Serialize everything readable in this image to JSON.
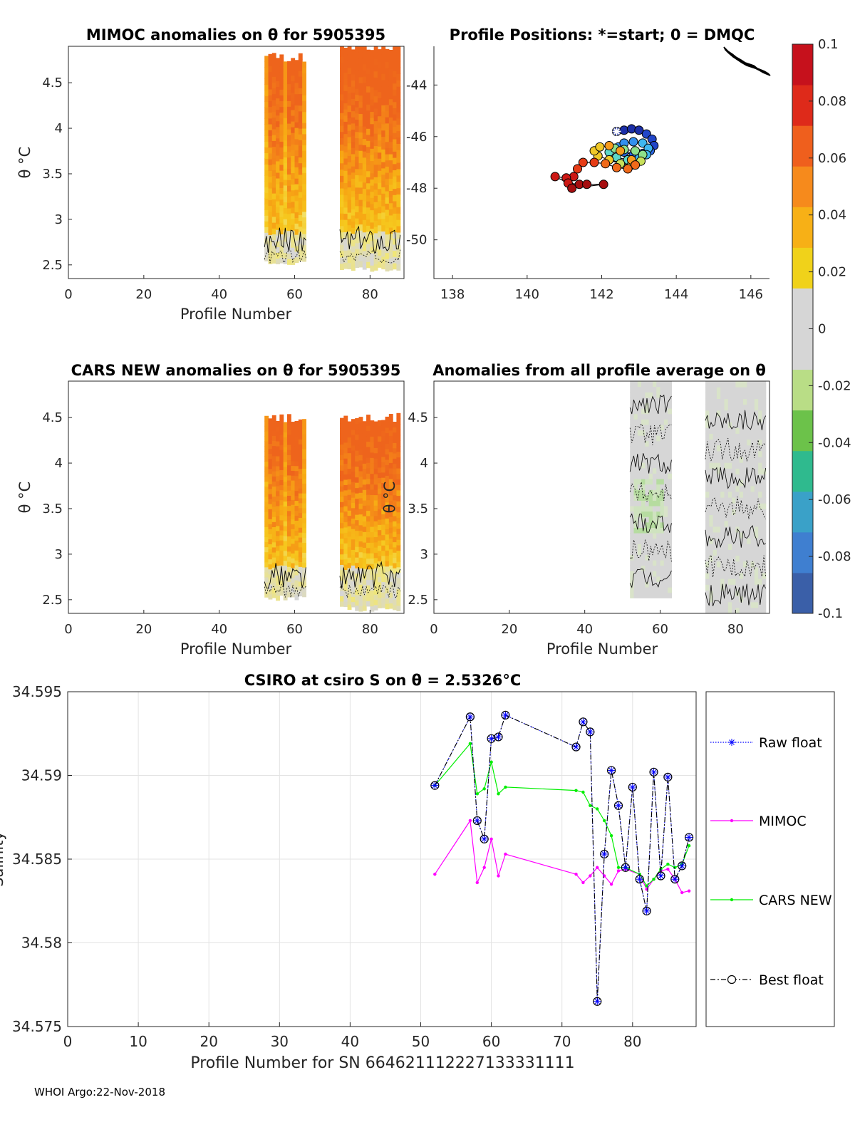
{
  "footer": "WHOI Argo:22-Nov-2018",
  "panels": {
    "mimoc": {
      "title": "MIMOC anomalies on θ  for 5905395",
      "xlabel": "Profile Number",
      "ylabel": "θ °C",
      "xticks": [
        "0",
        "20",
        "40",
        "60",
        "80"
      ],
      "yticks": [
        "2.5",
        "3",
        "3.5",
        "4",
        "4.5"
      ]
    },
    "positions": {
      "title": "Profile Positions: *=start; 0 = DMQC",
      "xticks": [
        "138",
        "140",
        "142",
        "144",
        "146"
      ],
      "yticks": [
        "-44",
        "-46",
        "-48",
        "-50"
      ]
    },
    "cars": {
      "title": "CARS NEW anomalies on θ for 5905395",
      "xlabel": "Profile Number",
      "ylabel": "θ °C",
      "xticks": [
        "0",
        "20",
        "40",
        "60",
        "80"
      ],
      "yticks": [
        "2.5",
        "3",
        "3.5",
        "4",
        "4.5"
      ]
    },
    "allavg": {
      "title": "Anomalies from all profile average on θ",
      "xlabel": "Profile Number",
      "ylabel": "θ °C",
      "xticks": [
        "0",
        "20",
        "40",
        "60",
        "80"
      ],
      "yticks": [
        "2.5",
        "3",
        "3.5",
        "4",
        "4.5"
      ]
    }
  },
  "colorbar": {
    "ticks": [
      "0.1",
      "0.08",
      "0.06",
      "0.04",
      "0.02",
      "0",
      "-0.02",
      "-0.04",
      "-0.06",
      "-0.08",
      "-0.1"
    ],
    "colors": [
      "#3a5fa8",
      "#3f7fd0",
      "#3aa1c8",
      "#2fba8e",
      "#6cc24a",
      "#b9dd86",
      "#d6d6d6",
      "#d6d6d6",
      "#f0d21a",
      "#f7b016",
      "#f68a1c",
      "#ef5f1d",
      "#de2a1a",
      "#c6111c"
    ]
  },
  "chart_data": [
    {
      "type": "line",
      "title": "CSIRO at csiro S on θ = 2.5326°C",
      "xlabel": "Profile Number for SN 664621112227133331111",
      "ylabel": "Salinity",
      "xlim": [
        0,
        89
      ],
      "ylim": [
        34.575,
        34.595
      ],
      "xticks": [
        "0",
        "10",
        "20",
        "30",
        "40",
        "50",
        "60",
        "70",
        "80"
      ],
      "yticks": [
        "34.575",
        "34.58",
        "34.585",
        "34.59",
        "34.595"
      ],
      "x": [
        52,
        57,
        58,
        59,
        60,
        61,
        62,
        72,
        73,
        74,
        75,
        76,
        77,
        78,
        79,
        80,
        81,
        82,
        83,
        84,
        85,
        86,
        87,
        88
      ],
      "series": [
        {
          "name": "Raw float",
          "color": "#0000ff",
          "values": [
            34.5894,
            34.5935,
            34.5873,
            34.5862,
            34.5922,
            34.5923,
            34.5936,
            34.5917,
            34.5932,
            34.5926,
            34.5765,
            34.5853,
            34.5903,
            34.5882,
            34.5845,
            34.5893,
            34.5838,
            34.5819,
            34.5902,
            34.584,
            34.5899,
            34.5838,
            34.5846,
            34.5863
          ]
        },
        {
          "name": "MIMOC",
          "color": "#ff00ff",
          "values": [
            34.5841,
            34.5873,
            34.5836,
            34.5845,
            34.5862,
            34.584,
            34.5853,
            34.5841,
            34.5836,
            34.584,
            34.5845,
            34.584,
            34.5835,
            34.5843,
            34.5844,
            null,
            34.5841,
            34.5832,
            34.5838,
            34.5843,
            34.5844,
            34.5838,
            34.583,
            34.5831
          ]
        },
        {
          "name": "CARS NEW",
          "color": "#00ee00",
          "values": [
            34.5894,
            34.5919,
            34.5889,
            34.5892,
            34.5908,
            34.5889,
            34.5893,
            34.5891,
            34.589,
            34.5882,
            34.588,
            34.5873,
            34.5864,
            34.5845,
            34.5845,
            null,
            34.5841,
            34.5834,
            34.5838,
            34.5844,
            34.5847,
            34.5845,
            34.5847,
            34.5858
          ]
        },
        {
          "name": "Best float",
          "color": "#000000",
          "values": [
            34.5894,
            34.5935,
            34.5873,
            34.5862,
            34.5922,
            34.5923,
            34.5936,
            34.5917,
            34.5932,
            34.5926,
            34.5765,
            34.5853,
            34.5903,
            34.5882,
            34.5845,
            34.5893,
            34.5838,
            34.5819,
            34.5902,
            34.584,
            34.5899,
            34.5838,
            34.5846,
            34.5863
          ]
        }
      ]
    },
    {
      "type": "scatter",
      "title": "Profile Positions: *=start; 0 = DMQC",
      "xlim": [
        137.5,
        146.5
      ],
      "ylim": [
        -51.5,
        -42.5
      ],
      "track": [
        [
          142.4,
          -45.8
        ],
        [
          142.6,
          -45.75
        ],
        [
          142.8,
          -45.7
        ],
        [
          143.0,
          -45.75
        ],
        [
          143.2,
          -45.9
        ],
        [
          143.35,
          -46.1
        ],
        [
          143.4,
          -46.35
        ],
        [
          143.3,
          -46.55
        ],
        [
          143.1,
          -46.65
        ],
        [
          142.85,
          -46.7
        ],
        [
          142.6,
          -46.6
        ],
        [
          142.45,
          -46.4
        ],
        [
          142.6,
          -46.25
        ],
        [
          142.85,
          -46.2
        ],
        [
          143.1,
          -46.25
        ],
        [
          143.25,
          -46.45
        ],
        [
          143.2,
          -46.7
        ],
        [
          143.0,
          -46.85
        ],
        [
          142.7,
          -46.9
        ],
        [
          142.4,
          -46.8
        ],
        [
          142.2,
          -46.6
        ],
        [
          142.35,
          -46.45
        ],
        [
          142.6,
          -46.5
        ],
        [
          142.9,
          -46.55
        ],
        [
          143.1,
          -46.7
        ],
        [
          143.05,
          -46.95
        ],
        [
          142.8,
          -47.1
        ],
        [
          142.5,
          -47.05
        ],
        [
          142.2,
          -46.9
        ],
        [
          141.9,
          -46.75
        ],
        [
          141.8,
          -46.55
        ],
        [
          141.95,
          -46.4
        ],
        [
          142.2,
          -46.35
        ],
        [
          142.5,
          -46.55
        ],
        [
          142.8,
          -46.9
        ],
        [
          142.9,
          -47.1
        ],
        [
          142.7,
          -47.25
        ],
        [
          142.4,
          -47.2
        ],
        [
          142.1,
          -47.05
        ],
        [
          141.8,
          -47.0
        ],
        [
          141.5,
          -47.0
        ],
        [
          141.35,
          -47.25
        ],
        [
          141.25,
          -47.55
        ],
        [
          141.05,
          -47.6
        ],
        [
          140.75,
          -47.55
        ],
        [
          141.1,
          -47.8
        ],
        [
          141.4,
          -47.85
        ],
        [
          141.6,
          -47.85
        ],
        [
          142.05,
          -47.85
        ],
        [
          141.2,
          -48.0
        ]
      ]
    }
  ]
}
